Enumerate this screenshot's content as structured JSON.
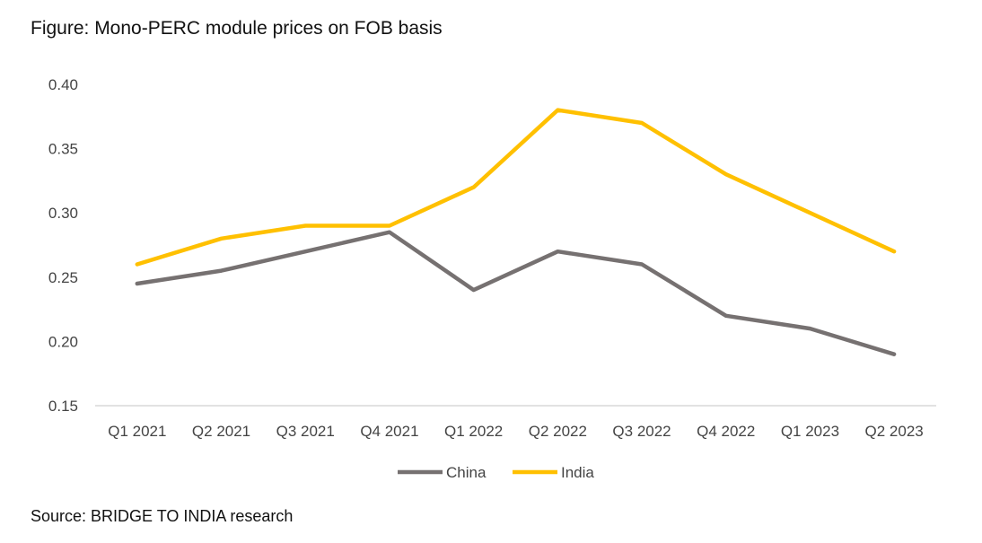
{
  "figure": {
    "title": "Figure: Mono-PERC module prices on FOB basis",
    "source": "Source: BRIDGE TO INDIA research"
  },
  "chart_data": {
    "type": "line",
    "title": "Figure: Mono-PERC module prices on FOB basis",
    "xlabel": "",
    "ylabel": "",
    "categories": [
      "Q1 2021",
      "Q2 2021",
      "Q3 2021",
      "Q4 2021",
      "Q1 2022",
      "Q2 2022",
      "Q3 2022",
      "Q4 2022",
      "Q1 2023",
      "Q2 2023"
    ],
    "ylim": [
      0.15,
      0.4
    ],
    "yticks": [
      0.15,
      0.2,
      0.25,
      0.3,
      0.35,
      0.4
    ],
    "grid": false,
    "legend_position": "bottom",
    "series": [
      {
        "name": "China",
        "color": "#767171",
        "values": [
          0.245,
          0.255,
          0.27,
          0.285,
          0.24,
          0.27,
          0.26,
          0.22,
          0.21,
          0.19
        ]
      },
      {
        "name": "India",
        "color": "#FFC000",
        "values": [
          0.26,
          0.28,
          0.29,
          0.29,
          0.32,
          0.38,
          0.37,
          0.33,
          0.3,
          0.27
        ]
      }
    ]
  }
}
